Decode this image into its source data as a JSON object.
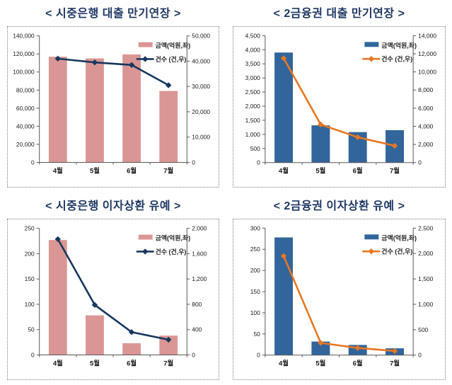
{
  "page": {
    "background": "#FFFFFF"
  },
  "styles": {
    "title_color": "#1F3864",
    "axis_color": "#595959",
    "tick_label_color": "#1A1A1A",
    "box_border_color": "#7F7F7F",
    "pink_bar": "#DA9694",
    "navy_line": "#17375E",
    "blue_bar": "#31659C",
    "orange_line": "#E87722"
  },
  "chart_data": [
    {
      "id": "commercial-bank-loan-maturity-extension",
      "title": "< 시중은행 대출 만기연장 >",
      "type": "combo",
      "categories": [
        "4월",
        "5월",
        "6월",
        "7월"
      ],
      "series": [
        {
          "name": "금액(억원,좌)",
          "type": "bar",
          "axis": "left",
          "color": "#DA9694",
          "values": [
            117000,
            115000,
            119500,
            79000
          ]
        },
        {
          "name": "건수 (건,우)",
          "type": "line",
          "axis": "right",
          "color": "#17375E",
          "values": [
            41000,
            39500,
            38500,
            30500
          ]
        }
      ],
      "left_axis": {
        "min": 0,
        "max": 140000,
        "step": 20000
      },
      "right_axis": {
        "min": 0,
        "max": 50000,
        "step": 10000
      },
      "legend_position": "top-right",
      "grid": false
    },
    {
      "id": "second-tier-loan-maturity-extension",
      "title": "< 2금융권 대출 만기연장 >",
      "type": "combo",
      "categories": [
        "4월",
        "5월",
        "6월",
        "7월"
      ],
      "series": [
        {
          "name": "금액(억원,좌)",
          "type": "bar",
          "axis": "left",
          "color": "#31659C",
          "values": [
            3900,
            1320,
            1080,
            1150
          ]
        },
        {
          "name": "건수 (건,우)",
          "type": "line",
          "axis": "right",
          "color": "#E87722",
          "values": [
            11500,
            4200,
            2800,
            1850
          ]
        }
      ],
      "left_axis": {
        "min": 0,
        "max": 4500,
        "step": 500
      },
      "right_axis": {
        "min": 0,
        "max": 14000,
        "step": 2000
      },
      "legend_position": "top-right",
      "grid": false
    },
    {
      "id": "commercial-bank-interest-deferral",
      "title": "< 시중은행 이자상환 유예 >",
      "type": "combo",
      "categories": [
        "4월",
        "5월",
        "6월",
        "7월"
      ],
      "series": [
        {
          "name": "금액(억원,좌)",
          "type": "bar",
          "axis": "left",
          "color": "#DA9694",
          "values": [
            227,
            78,
            23,
            38
          ]
        },
        {
          "name": "건수 (건,우)",
          "type": "line",
          "axis": "right",
          "color": "#17375E",
          "values": [
            1830,
            790,
            360,
            240
          ]
        }
      ],
      "left_axis": {
        "min": 0,
        "max": 250,
        "step": 50
      },
      "right_axis": {
        "min": 0,
        "max": 2000,
        "step": 400
      },
      "legend_position": "top-right",
      "grid": false
    },
    {
      "id": "second-tier-interest-deferral",
      "title": "< 2금융권 이자상환 유예 >",
      "type": "combo",
      "categories": [
        "4월",
        "5월",
        "6월",
        "7월"
      ],
      "series": [
        {
          "name": "금액(억원,좌)",
          "type": "bar",
          "axis": "left",
          "color": "#31659C",
          "values": [
            278,
            32,
            24,
            16
          ]
        },
        {
          "name": "건수 (건,우)",
          "type": "line",
          "axis": "right",
          "color": "#E87722",
          "values": [
            1950,
            240,
            140,
            80
          ]
        }
      ],
      "left_axis": {
        "min": 0,
        "max": 300,
        "step": 50
      },
      "right_axis": {
        "min": 0,
        "max": 2500,
        "step": 500
      },
      "legend_position": "top-right",
      "grid": false
    }
  ]
}
